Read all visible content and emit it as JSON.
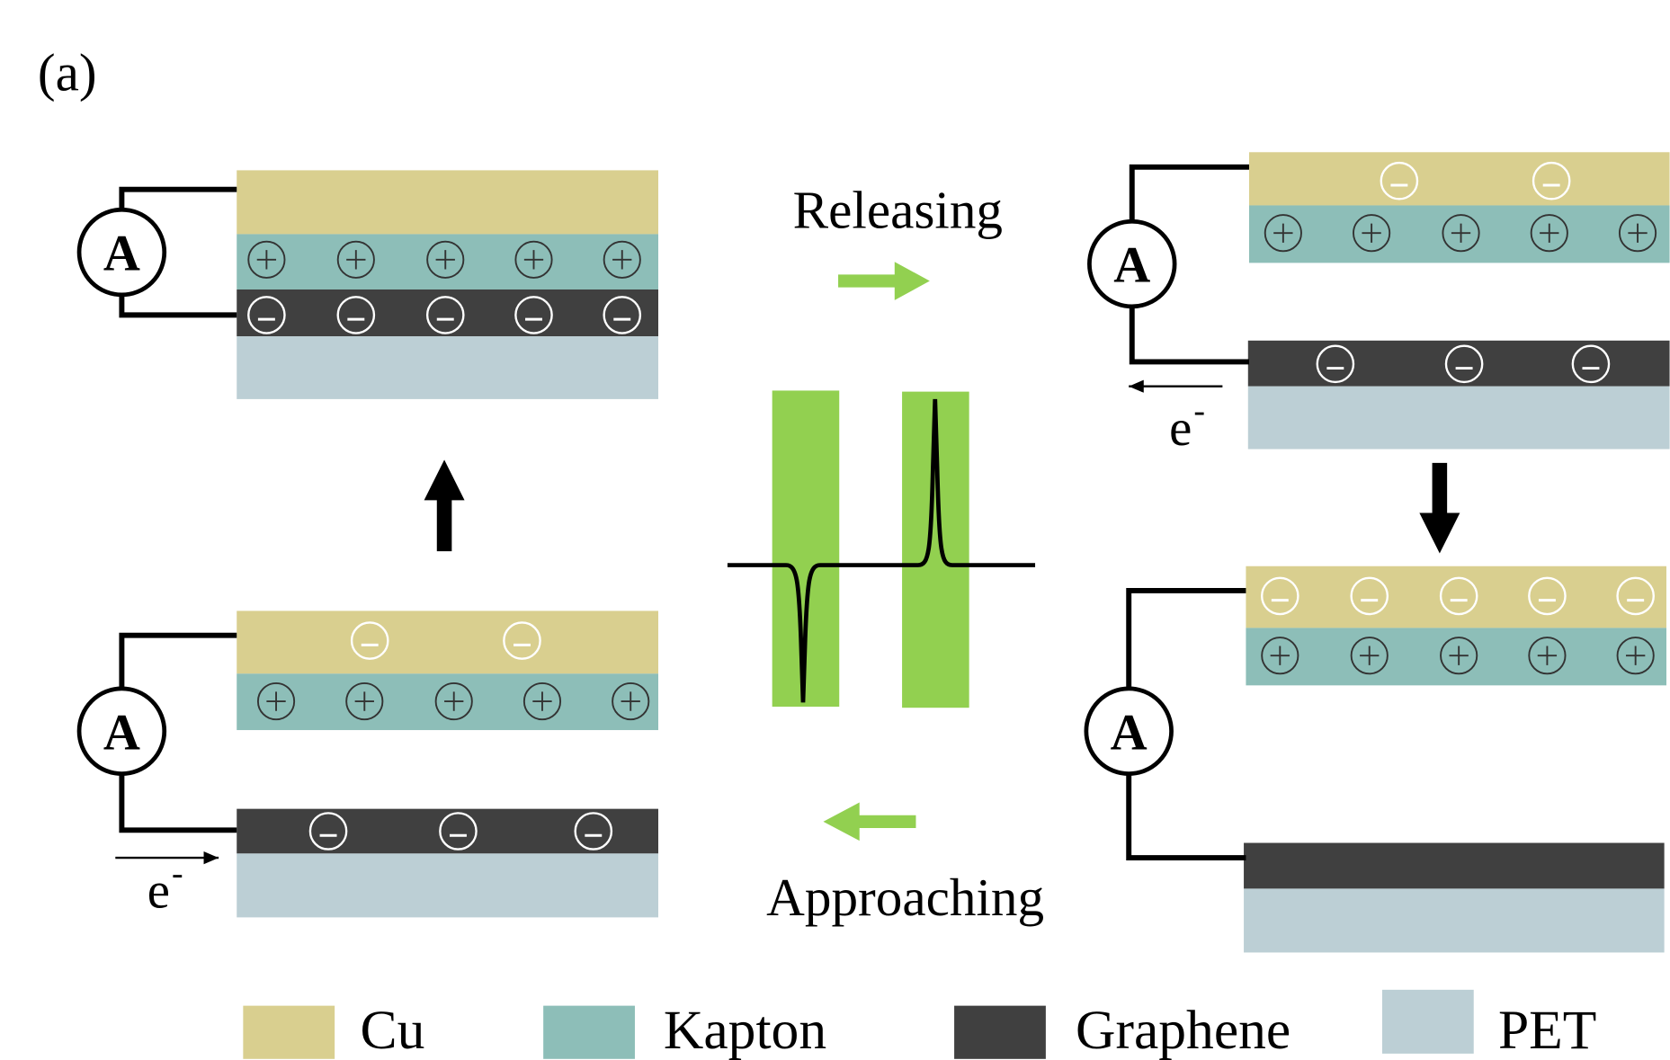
{
  "panel_label": "(a)",
  "process": {
    "releasing": "Releasing",
    "approaching": "Approaching"
  },
  "ammeter": "A",
  "electron": {
    "symbol": "e",
    "charge": "-"
  },
  "legend": [
    {
      "label": "Cu",
      "color": "#d9cf8f"
    },
    {
      "label": "Kapton",
      "color": "#8dbeb8"
    },
    {
      "label": "Graphene",
      "color": "#404040"
    },
    {
      "label": "PET",
      "color": "#bccfd5"
    }
  ]
}
